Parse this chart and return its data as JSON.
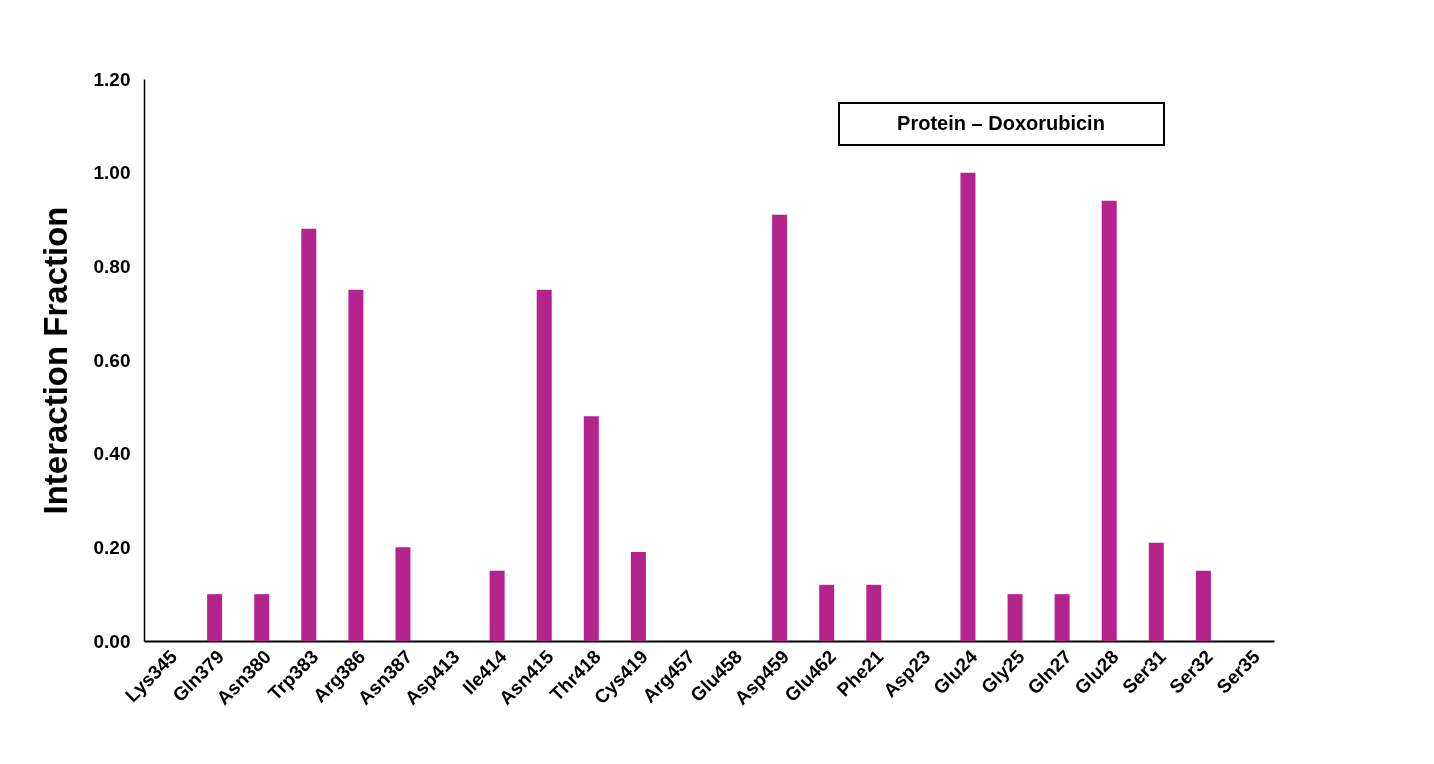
{
  "chart_data": {
    "type": "bar",
    "ylabel": "Interaction Fraction",
    "annotations": [
      "Protein – Doxorubicin"
    ],
    "categories": [
      "Lys345",
      "Gln379",
      "Asn380",
      "Trp383",
      "Arg386",
      "Asn387",
      "Asp413",
      "Ile414",
      "Asn415",
      "Thr418",
      "Cys419",
      "Arg457",
      "Glu458",
      "Asp459",
      "Glu462",
      "Phe21",
      "Asp23",
      "Glu24",
      "Gly25",
      "Gln27",
      "Glu28",
      "Ser31",
      "Ser32",
      "Ser35"
    ],
    "values": [
      0,
      0.1,
      0.1,
      0.88,
      0.75,
      0.2,
      0,
      0.15,
      0.75,
      0.48,
      0.19,
      0,
      0,
      0.91,
      0.12,
      0.12,
      0,
      1.0,
      0.1,
      0.1,
      0.94,
      0.21,
      0.15,
      0
    ],
    "color": "#b5238f",
    "ylim": [
      0,
      1.2
    ],
    "yticks": [
      {
        "value": 0,
        "label": "0.00"
      },
      {
        "value": 0.2,
        "label": "0.20"
      },
      {
        "value": 0.4,
        "label": "0.40"
      },
      {
        "value": 0.6,
        "label": "0.60"
      },
      {
        "value": 0.8,
        "label": "0.80"
      },
      {
        "value": 1.0,
        "label": "1.00"
      },
      {
        "value": 1.2,
        "label": "1.20"
      }
    ]
  }
}
